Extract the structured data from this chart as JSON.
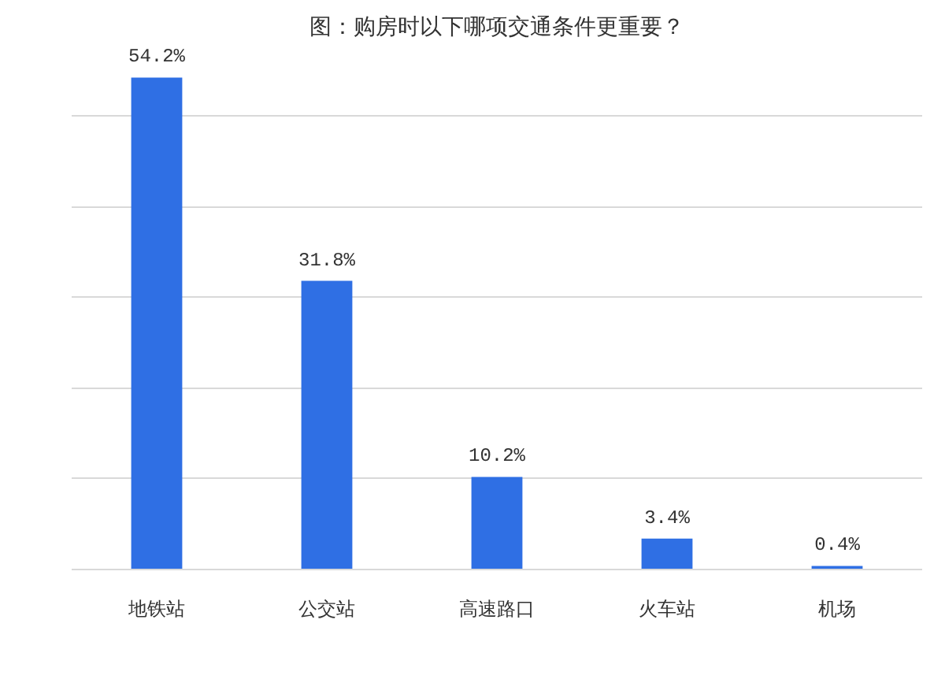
{
  "chart_data": {
    "type": "bar",
    "title": "图：购房时以下哪项交通条件更重要？",
    "categories": [
      "地铁站",
      "公交站",
      "高速路口",
      "火车站",
      "机场"
    ],
    "values": [
      54.2,
      31.8,
      10.2,
      3.4,
      0.4
    ],
    "value_labels": [
      "54.2%",
      "31.8%",
      "10.2%",
      "3.4%",
      "0.4%"
    ],
    "color": "#2f6fe4",
    "grid": "y"
  }
}
